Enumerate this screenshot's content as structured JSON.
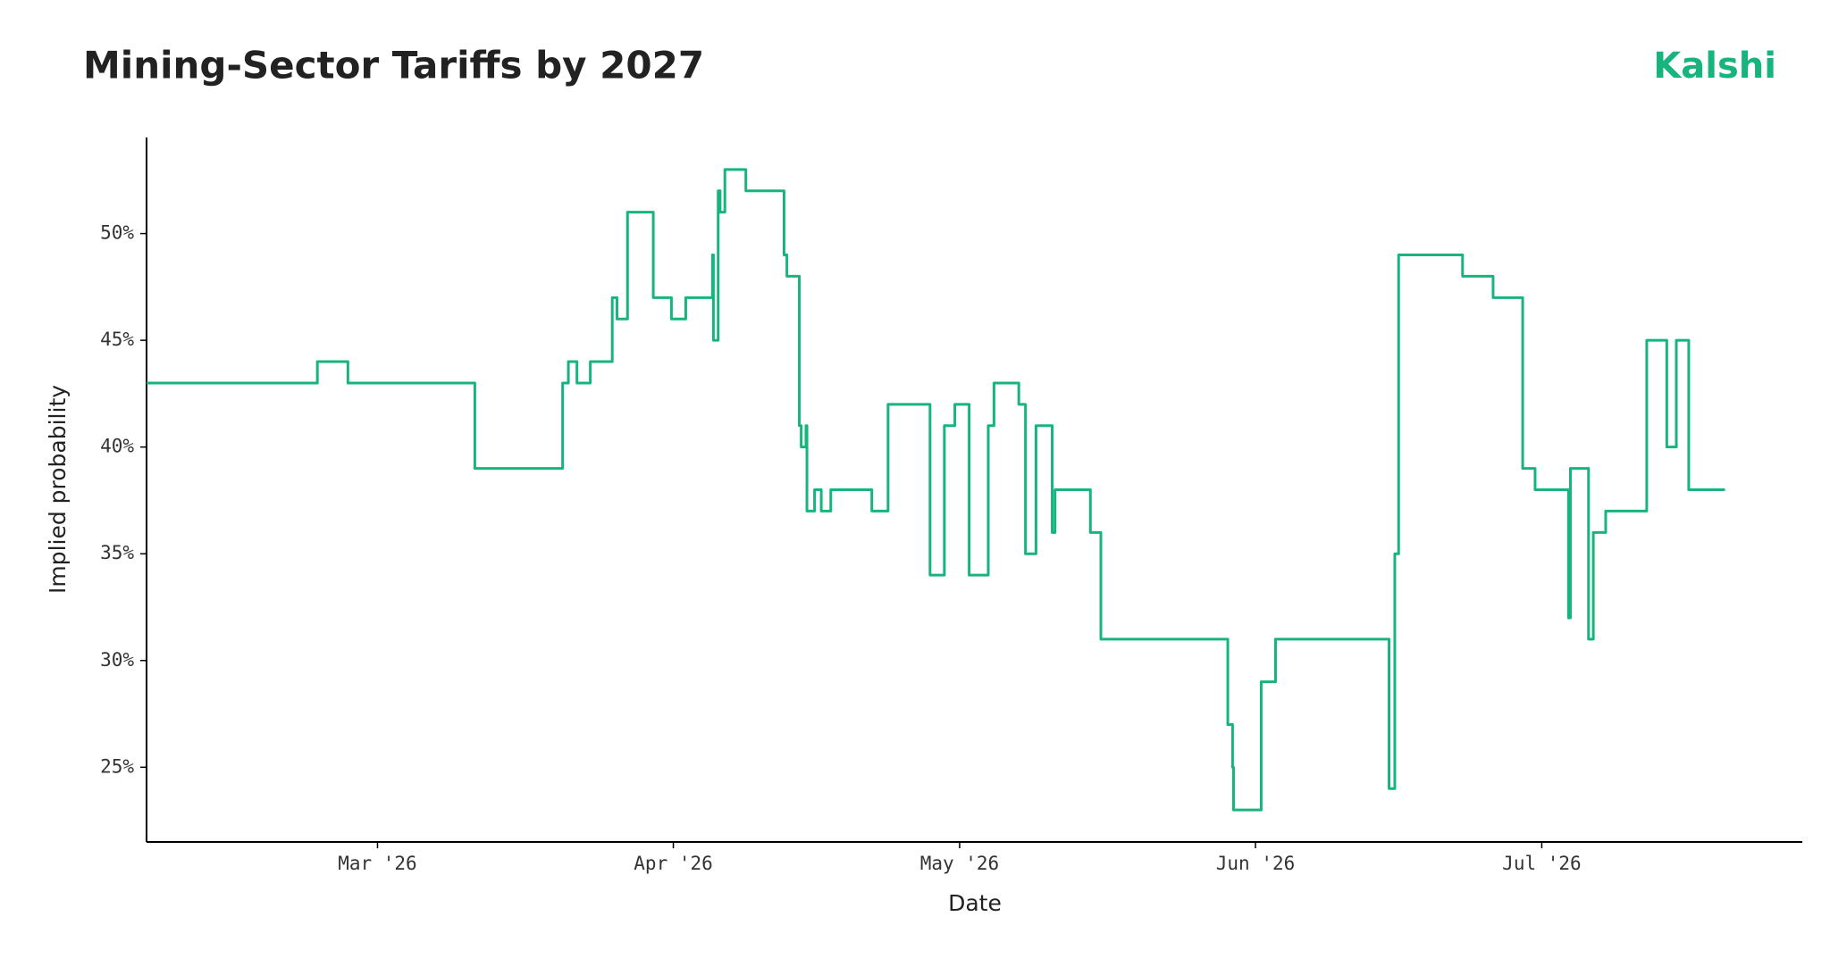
{
  "chart_data": {
    "type": "step-line",
    "title": "Mining-Sector Tariffs by 2027",
    "brand": "Kalshi",
    "x_label": "Date",
    "y_label": "Implied probability",
    "x": [
      35.8,
      53.7,
      56.9,
      70.2,
      79.4,
      80.0,
      80.9,
      82.3,
      84.6,
      85.1,
      86.2,
      88.9,
      90.8,
      92.3,
      95.1,
      95.2,
      95.7,
      95.9,
      96.4,
      98.6,
      102.6,
      102.9,
      104.2,
      104.4,
      104.9,
      105.0,
      105.8,
      106.5,
      107.5,
      111.8,
      113.5,
      117.9,
      119.4,
      120.5,
      122.0,
      124.0,
      124.6,
      127.2,
      127.9,
      129.0,
      130.7,
      131.0,
      134.7,
      135.8,
      149.1,
      149.6,
      149.7,
      152.6,
      154.1,
      166.0,
      166.6,
      167.0,
      173.7,
      176.9,
      180.0,
      181.3,
      184.8,
      185.0,
      186.9,
      187.4,
      188.7,
      193.0,
      195.1,
      196.1,
      197.4,
      201.2
    ],
    "series": [
      {
        "name": "Implied probability",
        "color": "#17b57d",
        "values": [
          43,
          44,
          43,
          39,
          43,
          44,
          43,
          44,
          47,
          46,
          51,
          47,
          46,
          47,
          49,
          45,
          52,
          51,
          53,
          52,
          49,
          48,
          41,
          40,
          41,
          37,
          38,
          37,
          38,
          37,
          42,
          34,
          41,
          42,
          34,
          41,
          43,
          42,
          35,
          41,
          36,
          38,
          36,
          31,
          27,
          25,
          23,
          29,
          31,
          24,
          35,
          49,
          48,
          47,
          39,
          38,
          32,
          39,
          31,
          36,
          37,
          45,
          40,
          45,
          38,
          38
        ]
      }
    ],
    "xlim": [
      35.8,
      209.3
    ],
    "xticks": [
      {
        "value": 60,
        "label": "Mar '26"
      },
      {
        "value": 91,
        "label": "Apr '26"
      },
      {
        "value": 121,
        "label": "May '26"
      },
      {
        "value": 152,
        "label": "Jun '26"
      },
      {
        "value": 182,
        "label": "Jul '26"
      }
    ],
    "ylim": [
      21.5,
      54.5
    ],
    "yticks": [
      {
        "value": 25,
        "label": "25%"
      },
      {
        "value": 30,
        "label": "30%"
      },
      {
        "value": 35,
        "label": "35%"
      },
      {
        "value": 40,
        "label": "40%"
      },
      {
        "value": 45,
        "label": "45%"
      },
      {
        "value": 50,
        "label": "50%"
      }
    ],
    "grid": false
  }
}
